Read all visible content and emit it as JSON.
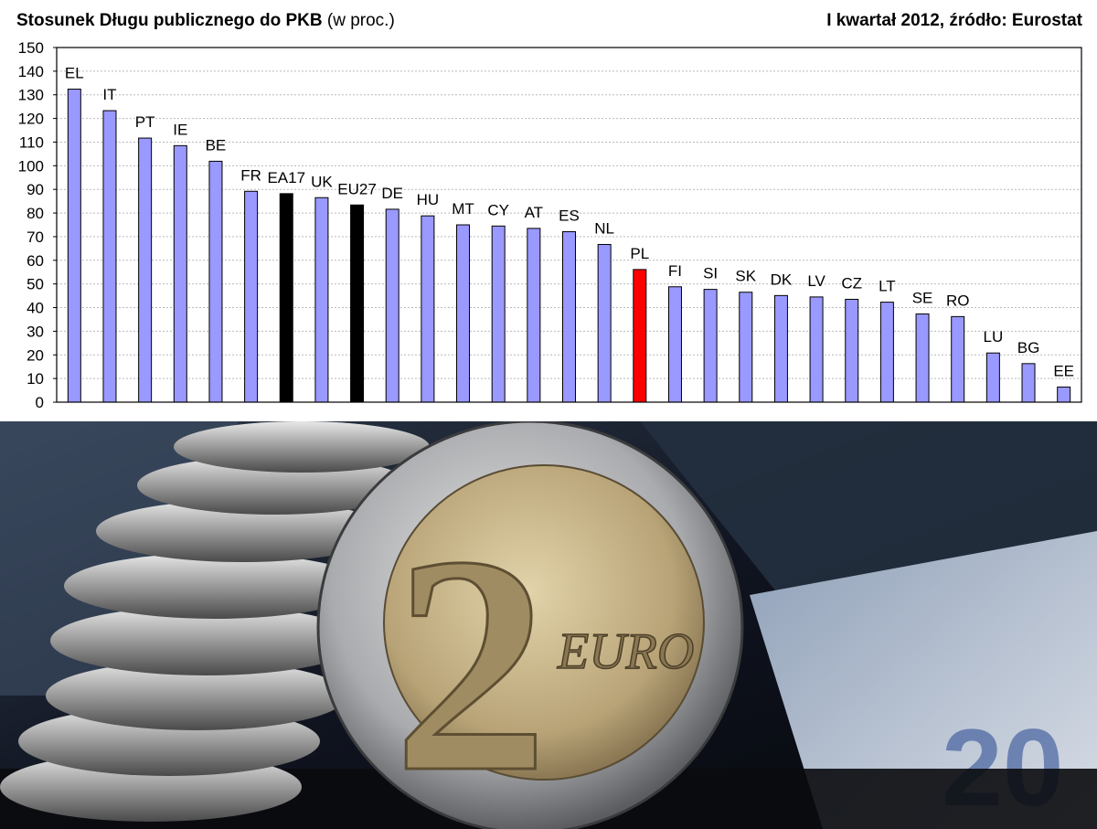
{
  "header": {
    "title_bold": "Stosunek Długu publicznego do PKB",
    "title_normal": "(w proc.)",
    "source": "I kwartał 2012, źródło: Eurostat"
  },
  "chart_data": {
    "type": "bar",
    "categories": [
      "EL",
      "IT",
      "PT",
      "IE",
      "BE",
      "FR",
      "EA17",
      "UK",
      "EU27",
      "DE",
      "HU",
      "MT",
      "CY",
      "AT",
      "ES",
      "NL",
      "PL",
      "FI",
      "SI",
      "SK",
      "DK",
      "LV",
      "CZ",
      "LT",
      "SE",
      "RO",
      "LU",
      "BG",
      "EE"
    ],
    "values": [
      132.4,
      123.3,
      111.7,
      108.5,
      101.9,
      89.2,
      88.2,
      86.5,
      83.4,
      81.6,
      78.8,
      75.0,
      74.5,
      73.5,
      72.1,
      66.7,
      56.1,
      48.8,
      47.7,
      46.5,
      45.1,
      44.5,
      43.5,
      42.3,
      37.3,
      36.2,
      20.8,
      16.3,
      6.4
    ],
    "bar_colors": [
      "#9999ff",
      "#9999ff",
      "#9999ff",
      "#9999ff",
      "#9999ff",
      "#9999ff",
      "#000000",
      "#9999ff",
      "#000000",
      "#9999ff",
      "#9999ff",
      "#9999ff",
      "#9999ff",
      "#9999ff",
      "#9999ff",
      "#9999ff",
      "#ff0000",
      "#9999ff",
      "#9999ff",
      "#9999ff",
      "#9999ff",
      "#9999ff",
      "#9999ff",
      "#9999ff",
      "#9999ff",
      "#9999ff",
      "#9999ff",
      "#9999ff",
      "#9999ff"
    ],
    "y_ticks": [
      "0",
      "10",
      "20",
      "30",
      "40",
      "50",
      "60",
      "70",
      "80",
      "90",
      "100",
      "110",
      "120",
      "130",
      "140",
      "150"
    ],
    "ylim": [
      0,
      150
    ],
    "grid": true,
    "legend": "none"
  },
  "photo": {
    "coin_value": "2",
    "coin_text": "EURO",
    "banknote_text": "20"
  }
}
